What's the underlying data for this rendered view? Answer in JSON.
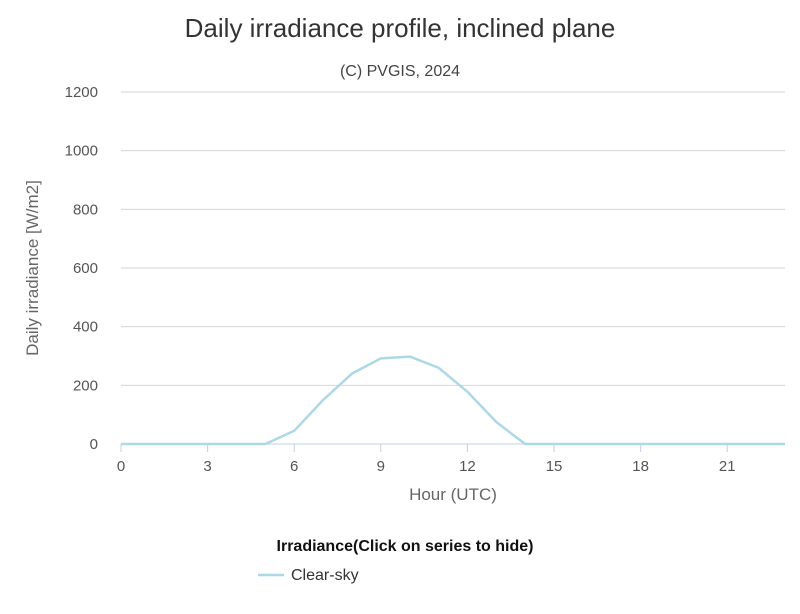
{
  "chart_data": {
    "type": "line",
    "title": "Daily irradiance profile, inclined plane",
    "subtitle": "(C) PVGIS, 2024",
    "xlabel": "Hour (UTC)",
    "ylabel": "Daily irradiance [W/m2]",
    "xlim": [
      0,
      23
    ],
    "ylim": [
      0,
      1200
    ],
    "xticks": [
      0,
      3,
      6,
      9,
      12,
      15,
      18,
      21
    ],
    "yticks": [
      0,
      200,
      400,
      600,
      800,
      1000,
      1200
    ],
    "grid": true,
    "legend": {
      "title": "Irradiance(Click on series to hide)",
      "placement": "bottom-center"
    },
    "x": [
      0,
      1,
      2,
      3,
      4,
      5,
      6,
      7,
      8,
      9,
      10,
      11,
      12,
      13,
      14,
      15,
      16,
      17,
      18,
      19,
      20,
      21,
      22,
      23
    ],
    "series": [
      {
        "name": "Clear-sky",
        "color": "#add8e6",
        "values": [
          0,
          0,
          0,
          0,
          0,
          0,
          45,
          150,
          240,
          292,
          298,
          260,
          178,
          75,
          0,
          0,
          0,
          0,
          0,
          0,
          0,
          0,
          0,
          0
        ]
      }
    ]
  }
}
